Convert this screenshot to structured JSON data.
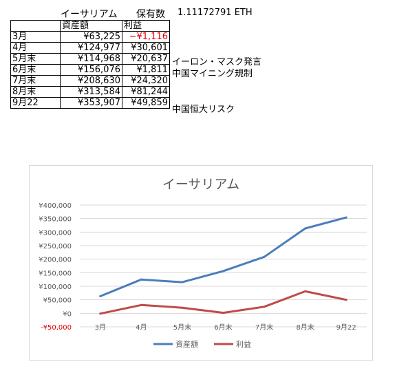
{
  "sheet": {
    "title": "イーサリアム",
    "holding_label": "保有数",
    "holding_value": "1.11172791 ETH",
    "headers": [
      "",
      "資産額",
      "利益"
    ],
    "rows": [
      {
        "month": "3月",
        "assets": "¥63,225",
        "profit": "−¥1,116"
      },
      {
        "month": "4月",
        "assets": "¥124,977",
        "profit": "¥30,601"
      },
      {
        "month": "5月末",
        "assets": "¥114,968",
        "profit": "¥20,637"
      },
      {
        "month": "6月末",
        "assets": "¥156,076",
        "profit": "¥1,811"
      },
      {
        "month": "7月末",
        "assets": "¥208,630",
        "profit": "¥24,320"
      },
      {
        "month": "8月末",
        "assets": "¥313,584",
        "profit": "¥81,244"
      },
      {
        "month": "9月22",
        "assets": "¥353,907",
        "profit": "¥49,859"
      }
    ],
    "notes": [
      "イーロン・マスク発言",
      "中国マイニング規制",
      "中国恒大リスク"
    ]
  },
  "chart_data": {
    "type": "line",
    "title": "イーサリアム",
    "categories": [
      "3月",
      "4月",
      "5月末",
      "6月末",
      "7月末",
      "8月末",
      "9月22"
    ],
    "series": [
      {
        "name": "資産額",
        "values": [
          63225,
          124977,
          114968,
          156076,
          208630,
          313584,
          353907
        ],
        "color": "#4a7ebb"
      },
      {
        "name": "利益",
        "values": [
          -1116,
          30601,
          20637,
          1811,
          24320,
          81244,
          49859
        ],
        "color": "#be4b48"
      }
    ],
    "ylim": [
      -50000,
      400000
    ],
    "yticks": [
      400000,
      350000,
      300000,
      250000,
      200000,
      150000,
      100000,
      50000,
      0,
      -50000
    ],
    "ytick_labels": [
      "¥400,000",
      "¥350,000",
      "¥300,000",
      "¥250,000",
      "¥200,000",
      "¥150,000",
      "¥100,000",
      "¥50,000",
      "¥0",
      "-¥50,000"
    ],
    "negative_label_color": "#e60000",
    "grid": true,
    "legend": "bottom",
    "xlabel": "",
    "ylabel": ""
  }
}
